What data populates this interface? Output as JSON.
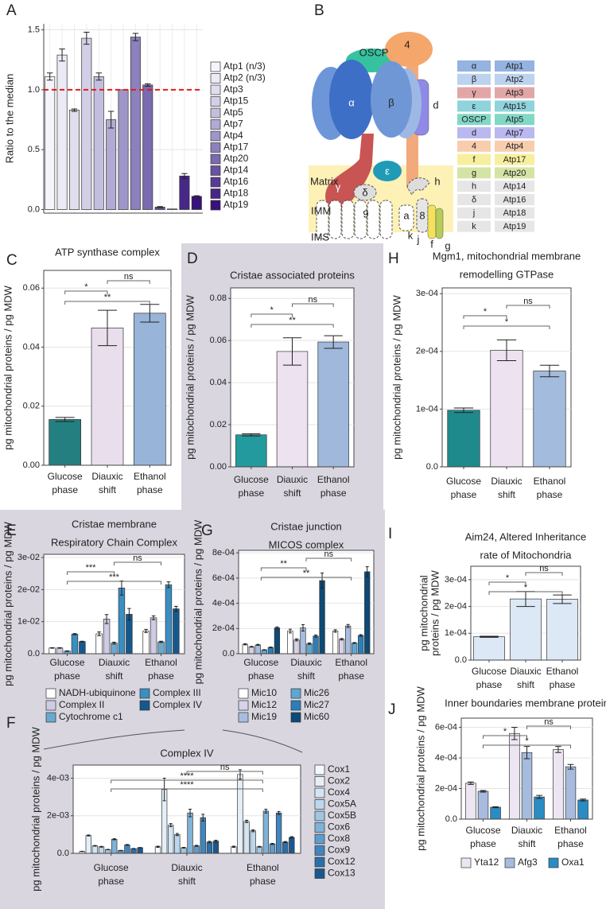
{
  "chart_data": [
    {
      "panel": "A",
      "type": "bar",
      "ylabel": "Ratio to the median",
      "categories": [
        "Atp1 (n/3)",
        "Atp2 (n/3)",
        "Atp3",
        "Atp15",
        "Atp5",
        "Atp7",
        "Atp4",
        "Atp17",
        "Atp20",
        "Atp14",
        "Atp16",
        "Atp18",
        "Atp19"
      ],
      "values": [
        1.11,
        1.29,
        0.83,
        1.43,
        1.11,
        0.75,
        1.0,
        1.44,
        1.04,
        0.02,
        0.005,
        0.28,
        0.11
      ],
      "errors": [
        0.03,
        0.05,
        0.01,
        0.05,
        0.03,
        0.07,
        null,
        0.03,
        0.01,
        0.005,
        null,
        0.02,
        0.005
      ],
      "colors": [
        "#f6f4fa",
        "#eceaf4",
        "#e0dded",
        "#d2cfe6",
        "#c2bedd",
        "#b1aad3",
        "#9f96c8",
        "#8c80bd",
        "#7a6aaf",
        "#6852a2",
        "#573c95",
        "#472787",
        "#38127a"
      ],
      "ylim": [
        -0.03,
        1.55
      ],
      "yticks": [
        {
          "value": 0,
          "label": "0.0"
        },
        {
          "value": 0.5,
          "label": "0.5"
        },
        {
          "value": 1,
          "label": "1.0"
        },
        {
          "value": 1.5,
          "label": "1.5"
        }
      ],
      "hline": {
        "value": 1,
        "color": "#e31a1c"
      },
      "grid": true,
      "legend": true
    },
    {
      "panel": "C",
      "type": "bar",
      "title": [
        "ATP synthase complex"
      ],
      "ylabel": [
        "pg mitochondrial proteins / pg MDW"
      ],
      "categories": [
        [
          "Glucose",
          "phase"
        ],
        [
          "Diauxic",
          "shift"
        ],
        [
          "Ethanol",
          "phase"
        ]
      ],
      "values": [
        0.0155,
        0.0465,
        0.0515
      ],
      "errors": [
        0.0007,
        0.006,
        0.003
      ],
      "colors": [
        "#237f80",
        "#e9deeb",
        "#98b4d8"
      ],
      "ylim": [
        0,
        0.066
      ],
      "yticks": [
        {
          "value": 0,
          "label": "0.00"
        },
        {
          "value": 0.02,
          "label": "0.02"
        },
        {
          "value": 0.04,
          "label": "0.04"
        },
        {
          "value": 0.06,
          "label": "0.06"
        }
      ],
      "significance": [
        {
          "from": 1,
          "to": 2,
          "label": "ns"
        },
        {
          "from": 0,
          "to": 1,
          "label": "*"
        },
        {
          "from": 0,
          "to": 2,
          "label": "**"
        }
      ],
      "grid": true
    },
    {
      "panel": "D",
      "type": "bar",
      "title": [
        "Cristae associated proteins"
      ],
      "ylabel": [
        "pg mitochondrial proteins / pg MDW"
      ],
      "categories": [
        [
          "Glucose",
          "phase"
        ],
        [
          "Diauxic",
          "shift"
        ],
        [
          "Ethanol",
          "phase"
        ]
      ],
      "values": [
        0.0152,
        0.0548,
        0.0593
      ],
      "errors": [
        0.0005,
        0.0065,
        0.003
      ],
      "colors": [
        "#239a9e",
        "#ede2f0",
        "#9fb8dc"
      ],
      "ylim": [
        0,
        0.085
      ],
      "yticks": [
        {
          "value": 0,
          "label": "0.00"
        },
        {
          "value": 0.02,
          "label": "0.02"
        },
        {
          "value": 0.04,
          "label": "0.04"
        },
        {
          "value": 0.06,
          "label": "0.06"
        },
        {
          "value": 0.08,
          "label": "0.08"
        }
      ],
      "significance": [
        {
          "from": 1,
          "to": 2,
          "label": "ns"
        },
        {
          "from": 0,
          "to": 1,
          "label": "*"
        },
        {
          "from": 0,
          "to": 2,
          "label": "**"
        }
      ],
      "grid": true
    },
    {
      "panel": "H",
      "type": "bar",
      "title": [
        "Mgm1, mitochondrial membrane",
        "remodelling GTPase"
      ],
      "ylabel": [
        "pg mitochondrial proteins / pg MDW"
      ],
      "categories": [
        [
          "Glucose",
          "phase"
        ],
        [
          "Diauxic",
          "shift"
        ],
        [
          "Ethanol",
          "phase"
        ]
      ],
      "values": [
        9.8e-05,
        0.000202,
        0.000166
      ],
      "errors": [
        4e-06,
        1.8e-05,
        1e-05
      ],
      "colors": [
        "#1f8a8c",
        "#ede2f0",
        "#a3bbdd"
      ],
      "ylim": [
        0,
        0.00031
      ],
      "yticks": [
        {
          "value": 0,
          "label": "0.0"
        },
        {
          "value": 0.0001,
          "label": "1e-04"
        },
        {
          "value": 0.0002,
          "label": "2e-04"
        },
        {
          "value": 0.0003,
          "label": "3e-04"
        }
      ],
      "significance": [
        {
          "from": 1,
          "to": 2,
          "label": "ns"
        },
        {
          "from": 0,
          "to": 1,
          "label": "*"
        },
        {
          "from": 0,
          "to": 2,
          "label": "*"
        }
      ],
      "grid": true
    },
    {
      "panel": "E",
      "type": "grouped",
      "title": [
        "Cristae membrane",
        "Respiratory Chain Complex"
      ],
      "ylabel": [
        "pg mitochondrial proteins / pg MDW"
      ],
      "categories": [
        [
          "Glucose",
          "phase"
        ],
        [
          "Diauxic",
          "shift"
        ],
        [
          "Ethanol",
          "phase"
        ]
      ],
      "series": [
        {
          "name": "NADH-ubiquinone",
          "color": "#ffffff",
          "values": [
            0.0018,
            0.0062,
            0.0071
          ],
          "errors": [
            0.0001,
            0.0006,
            0.0005
          ]
        },
        {
          "name": "Complex II",
          "color": "#cfcbe3",
          "values": [
            0.0018,
            0.0108,
            0.0112
          ],
          "errors": [
            0.0001,
            0.0014,
            0.0006
          ]
        },
        {
          "name": "Cytochrome c1",
          "color": "#6aa8d0",
          "values": [
            0.0008,
            0.0033,
            0.0037
          ],
          "errors": [
            0.0001,
            0.0003,
            0.0002
          ]
        },
        {
          "name": "Complex III",
          "color": "#3a8fc2",
          "values": [
            0.0061,
            0.0205,
            0.0215
          ],
          "errors": [
            0.0002,
            0.0022,
            0.0009
          ]
        },
        {
          "name": "Complex IV",
          "color": "#14598e",
          "values": [
            0.0038,
            0.0123,
            0.014
          ],
          "errors": [
            0.0001,
            0.0018,
            0.0008
          ]
        }
      ],
      "ylim": [
        0,
        0.031
      ],
      "yticks": [
        {
          "value": 0,
          "label": "0.0"
        },
        {
          "value": 0.01,
          "label": "1e-02"
        },
        {
          "value": 0.02,
          "label": "2e-02"
        },
        {
          "value": 0.03,
          "label": "3e-02"
        }
      ],
      "significance": [
        {
          "from": 1,
          "to": 2,
          "label": "ns"
        },
        {
          "from": 0,
          "to": 1,
          "label": "***"
        },
        {
          "from": 0,
          "to": 2,
          "label": "***"
        }
      ],
      "grid": true
    },
    {
      "panel": "G",
      "type": "grouped",
      "title": [
        "Cristae junction",
        "MICOS complex"
      ],
      "ylabel": [
        "pg mitochondrial proteins / pg MDW"
      ],
      "categories": [
        [
          "Glucose",
          "phase"
        ],
        [
          "Diauxic",
          "shift"
        ],
        [
          "Ethanol",
          "phase"
        ]
      ],
      "series": [
        {
          "name": "Mic10",
          "color": "#ffffff",
          "values": [
            7.5e-05,
            0.00018,
            0.00018
          ],
          "errors": [
            5e-06,
            1.5e-05,
            1e-05
          ]
        },
        {
          "name": "Mic12",
          "color": "#d6d2e8",
          "values": [
            5.5e-05,
            0.00011,
            0.000115
          ],
          "errors": [
            3e-06,
            8e-06,
            6e-06
          ]
        },
        {
          "name": "Mic19",
          "color": "#a7bde0",
          "values": [
            7e-05,
            0.000205,
            0.00022
          ],
          "errors": [
            4e-06,
            2.5e-05,
            1.2e-05
          ]
        },
        {
          "name": "Mic26",
          "color": "#5fa7d2",
          "values": [
            3e-05,
            8e-05,
            8.5e-05
          ],
          "errors": [
            2e-06,
            6e-06,
            4e-06
          ]
        },
        {
          "name": "Mic27",
          "color": "#2b7fb8",
          "values": [
            5e-05,
            0.00014,
            0.000145
          ],
          "errors": [
            3e-06,
            8e-06,
            6e-06
          ]
        },
        {
          "name": "Mic60",
          "color": "#0d4a78",
          "values": [
            0.000205,
            0.00058,
            0.00065
          ],
          "errors": [
            8e-06,
            6e-05,
            4e-05
          ]
        }
      ],
      "ylim": [
        0,
        0.00082
      ],
      "yticks": [
        {
          "value": 0,
          "label": "0.0"
        },
        {
          "value": 0.0002,
          "label": "2e-04"
        },
        {
          "value": 0.0004,
          "label": "4e-04"
        },
        {
          "value": 0.0006,
          "label": "6e-04"
        },
        {
          "value": 0.0008,
          "label": "8e-04"
        }
      ],
      "significance": [
        {
          "from": 1,
          "to": 2,
          "label": "ns"
        },
        {
          "from": 0,
          "to": 1,
          "label": "**"
        },
        {
          "from": 0,
          "to": 2,
          "label": "**"
        }
      ],
      "grid": true
    },
    {
      "panel": "F",
      "type": "grouped",
      "title": [
        "Complex IV"
      ],
      "ylabel": [
        "pg mitochondrial proteins / pg MDW"
      ],
      "categories": [
        [
          "Glucose",
          "phase"
        ],
        [
          "Diauxic",
          "shift"
        ],
        [
          "Ethanol",
          "phase"
        ]
      ],
      "series": [
        {
          "name": "Cox1",
          "color": "#f5f9fd",
          "values": [
            0.0001,
            0.00035,
            0.00035
          ],
          "errors": [
            1e-05,
            3e-05,
            3e-05
          ]
        },
        {
          "name": "Cox2",
          "color": "#e4eff8",
          "values": [
            0.00095,
            0.0034,
            0.0042
          ],
          "errors": [
            3e-05,
            0.0006,
            0.00025
          ]
        },
        {
          "name": "Cox4",
          "color": "#d3e4f2",
          "values": [
            0.0004,
            0.0015,
            0.0017
          ],
          "errors": [
            2e-05,
            8e-05,
            6e-05
          ]
        },
        {
          "name": "Cox5A",
          "color": "#bcd7ec",
          "values": [
            0.00035,
            0.001,
            0.0012
          ],
          "errors": [
            2e-05,
            6e-05,
            5e-05
          ]
        },
        {
          "name": "Cox5B",
          "color": "#9fc6e3",
          "values": [
            0.0002,
            0.0003,
            0.00035
          ],
          "errors": [
            1e-05,
            2e-05,
            2e-05
          ]
        },
        {
          "name": "Cox6",
          "color": "#7fb2d9",
          "values": [
            0.00075,
            0.00215,
            0.00225
          ],
          "errors": [
            3e-05,
            0.0002,
            0.0001
          ]
        },
        {
          "name": "Cox8",
          "color": "#5f9ccd",
          "values": [
            0.00015,
            0.0004,
            0.0005
          ],
          "errors": [
            1e-05,
            3e-05,
            3e-05
          ]
        },
        {
          "name": "Cox9",
          "color": "#4285bd",
          "values": [
            0.00045,
            0.0019,
            0.00215
          ],
          "errors": [
            2e-05,
            0.00018,
            8e-05
          ]
        },
        {
          "name": "Cox12",
          "color": "#2c6ea9",
          "values": [
            0.00025,
            0.0006,
            0.0006
          ],
          "errors": [
            1e-05,
            4e-05,
            3e-05
          ]
        },
        {
          "name": "Cox13",
          "color": "#1a5790",
          "values": [
            0.0003,
            0.00065,
            0.00085
          ],
          "errors": [
            1e-05,
            5e-05,
            4e-05
          ]
        }
      ],
      "ylim": [
        0,
        0.0047
      ],
      "yticks": [
        {
          "value": 0,
          "label": "0.0"
        },
        {
          "value": 0.002,
          "label": "2e-03"
        },
        {
          "value": 0.004,
          "label": "4e-03"
        }
      ],
      "significance": [
        {
          "from": 1,
          "to": 2,
          "label": "ns"
        },
        {
          "from": 0,
          "to": 2,
          "label": "****"
        },
        {
          "from": 0,
          "to": 2,
          "label": "****"
        }
      ],
      "grid": true
    },
    {
      "panel": "I",
      "type": "bar",
      "title": [
        "Aim24, Altered Inheritance",
        "rate of Mitochondria"
      ],
      "ylabel": [
        "pg mitochondrial",
        "proteins / pg MDW"
      ],
      "categories": [
        [
          "Glucose",
          "phase"
        ],
        [
          "Diauxic",
          "shift"
        ],
        [
          "Ethanol",
          "phase"
        ]
      ],
      "values": [
        8.7e-05,
        0.000228,
        0.000227
      ],
      "errors": [
        2e-06,
        2.8e-05,
        1.6e-05
      ],
      "colors": [
        "#dce8f5",
        "#dce8f5",
        "#dce8f5"
      ],
      "ylim": [
        0,
        0.00035
      ],
      "yticks": [
        {
          "value": 0,
          "label": "0.0"
        },
        {
          "value": 0.0001,
          "label": "1e-04"
        },
        {
          "value": 0.0002,
          "label": "2e-04"
        },
        {
          "value": 0.0003,
          "label": "3e-04"
        }
      ],
      "significance": [
        {
          "from": 1,
          "to": 2,
          "label": "ns"
        },
        {
          "from": 0,
          "to": 1,
          "label": "*"
        },
        {
          "from": 0,
          "to": 2,
          "label": "*"
        }
      ],
      "grid": true
    },
    {
      "panel": "J",
      "type": "grouped",
      "title": [
        "Inner boundaries membrane protein"
      ],
      "ylabel": [
        "pg mitochondrial proteins / pg MDW"
      ],
      "categories": [
        [
          "Glucose",
          "phase"
        ],
        [
          "Diauxic",
          "shift"
        ],
        [
          "Ethanol",
          "phase"
        ]
      ],
      "series": [
        {
          "name": "Yta12",
          "color": "#ede6f2",
          "values": [
            0.000235,
            0.00056,
            0.000455
          ],
          "errors": [
            8e-06,
            4e-05,
            2e-05
          ]
        },
        {
          "name": "Afg3",
          "color": "#a6bbde",
          "values": [
            0.000182,
            0.000435,
            0.000342
          ],
          "errors": [
            5e-06,
            4e-05,
            1.5e-05
          ]
        },
        {
          "name": "Oxa1",
          "color": "#2a8cc4",
          "values": [
            7.8e-05,
            0.000145,
            0.000125
          ],
          "errors": [
            3e-06,
            1e-05,
            6e-06
          ]
        }
      ],
      "ylim": [
        0,
        0.00066
      ],
      "yticks": [
        {
          "value": 0,
          "label": "0.0"
        },
        {
          "value": 0.0002,
          "label": "2e-04"
        },
        {
          "value": 0.0004,
          "label": "4e-04"
        },
        {
          "value": 0.0006,
          "label": "6e-04"
        }
      ],
      "significance": [
        {
          "from": 1,
          "to": 2,
          "label": "ns"
        },
        {
          "from": 0,
          "to": 1,
          "label": "*"
        },
        {
          "from": 0,
          "to": 2,
          "label": "*"
        }
      ],
      "grid": true
    }
  ],
  "diagram": {
    "panel": "B",
    "labels": {
      "oscp": "OSCP",
      "four": "4",
      "alpha": "α",
      "beta": "β",
      "d": "d",
      "epsilon": "ε",
      "gamma": "γ",
      "delta": "δ",
      "h": "h",
      "matrix": "Matrix",
      "imm": "IMM",
      "ims": "IMS",
      "nine": "9",
      "a": "a",
      "eight": "8",
      "k": "k",
      "j": "j",
      "f": "f",
      "g": "g"
    },
    "subunits": [
      {
        "symbol": "α",
        "gene": "Atp1",
        "color": "#94b3e0"
      },
      {
        "symbol": "β",
        "gene": "Atp2",
        "color": "#bcd2ef"
      },
      {
        "symbol": "γ",
        "gene": "Atp3",
        "color": "#e3a6a6"
      },
      {
        "symbol": "ε",
        "gene": "Atp15",
        "color": "#8fd3dc"
      },
      {
        "symbol": "OSCP",
        "gene": "Atp5",
        "color": "#82d8c6"
      },
      {
        "symbol": "d",
        "gene": "Atp7",
        "color": "#bbb8f0"
      },
      {
        "symbol": "4",
        "gene": "Atp4",
        "color": "#f8cdae"
      },
      {
        "symbol": "f",
        "gene": "Atp17",
        "color": "#f8ef9e"
      },
      {
        "symbol": "g",
        "gene": "Atp20",
        "color": "#d4e4a5"
      },
      {
        "symbol": "h",
        "gene": "Atp14",
        "color": "#e6e6e6"
      },
      {
        "symbol": "δ",
        "gene": "Atp16",
        "color": "#e6e6e6"
      },
      {
        "symbol": "j",
        "gene": "Atp18",
        "color": "#e6e6e6"
      },
      {
        "symbol": "k",
        "gene": "Atp19",
        "color": "#e6e6e6"
      }
    ]
  }
}
